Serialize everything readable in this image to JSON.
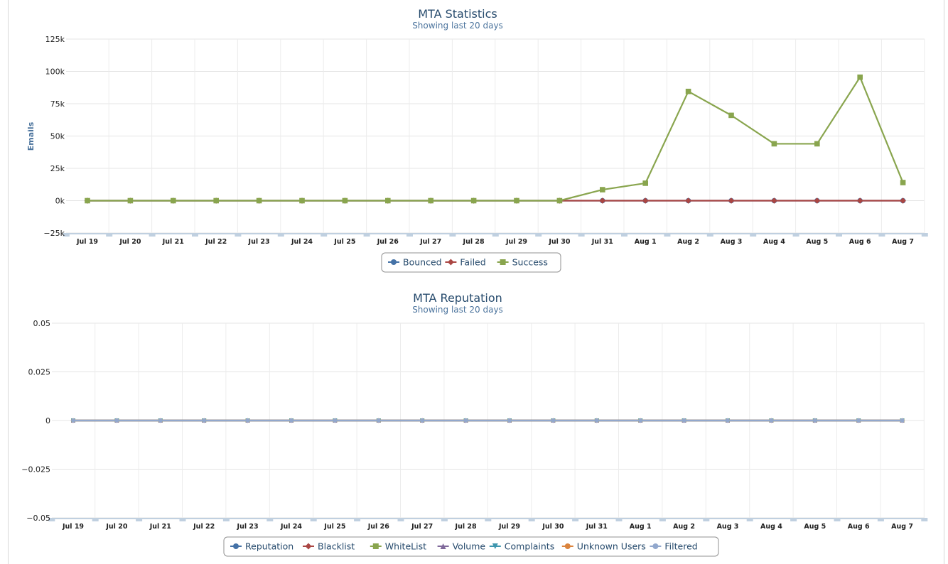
{
  "chart_data": [
    {
      "type": "line",
      "title": "MTA Statistics",
      "subtitle": "Showing last 20 days",
      "xlabel": "",
      "ylabel": "Emails",
      "ylim": [
        -25000,
        125000
      ],
      "yticks": [
        125000,
        100000,
        75000,
        50000,
        25000,
        0,
        -25000
      ],
      "ytick_labels": [
        "125k",
        "100k",
        "75k",
        "50k",
        "25k",
        "0k",
        "−25k"
      ],
      "categories": [
        "Jul 19",
        "Jul 20",
        "Jul 21",
        "Jul 22",
        "Jul 23",
        "Jul 24",
        "Jul 25",
        "Jul 26",
        "Jul 27",
        "Jul 28",
        "Jul 29",
        "Jul 30",
        "Jul 31",
        "Aug 1",
        "Aug 2",
        "Aug 3",
        "Aug 4",
        "Aug 5",
        "Aug 6",
        "Aug 7"
      ],
      "grid": true,
      "legend_placement": "bottom-center",
      "series": [
        {
          "name": "Bounced",
          "color": "#4572a7",
          "marker": "circle",
          "values": [
            0,
            0,
            0,
            0,
            0,
            0,
            0,
            0,
            0,
            0,
            0,
            0,
            0,
            0,
            0,
            0,
            0,
            0,
            0,
            0
          ]
        },
        {
          "name": "Failed",
          "color": "#aa4643",
          "marker": "diamond",
          "values": [
            0,
            0,
            0,
            0,
            0,
            0,
            0,
            0,
            0,
            0,
            0,
            0,
            0,
            0,
            0,
            0,
            0,
            0,
            0,
            0
          ]
        },
        {
          "name": "Success",
          "color": "#89a54e",
          "marker": "square",
          "values": [
            0,
            0,
            0,
            0,
            0,
            0,
            0,
            0,
            0,
            0,
            0,
            0,
            8500,
            13500,
            84500,
            66000,
            44000,
            44000,
            95500,
            14000
          ]
        }
      ]
    },
    {
      "type": "line",
      "title": "MTA Reputation",
      "subtitle": "Showing last 20 days",
      "xlabel": "",
      "ylabel": "",
      "ylim": [
        -0.05,
        0.05
      ],
      "yticks": [
        0.05,
        0.025,
        0,
        -0.025,
        -0.05
      ],
      "ytick_labels": [
        "0.05",
        "0.025",
        "0",
        "−0.025",
        "−0.05"
      ],
      "categories": [
        "Jul 19",
        "Jul 20",
        "Jul 21",
        "Jul 22",
        "Jul 23",
        "Jul 24",
        "Jul 25",
        "Jul 26",
        "Jul 27",
        "Jul 28",
        "Jul 29",
        "Jul 30",
        "Jul 31",
        "Aug 1",
        "Aug 2",
        "Aug 3",
        "Aug 4",
        "Aug 5",
        "Aug 6",
        "Aug 7"
      ],
      "grid": true,
      "legend_placement": "bottom-center",
      "series": [
        {
          "name": "Reputation",
          "color": "#4572a7",
          "marker": "circle",
          "values": [
            0,
            0,
            0,
            0,
            0,
            0,
            0,
            0,
            0,
            0,
            0,
            0,
            0,
            0,
            0,
            0,
            0,
            0,
            0,
            0
          ]
        },
        {
          "name": "Blacklist",
          "color": "#aa4643",
          "marker": "diamond",
          "values": [
            0,
            0,
            0,
            0,
            0,
            0,
            0,
            0,
            0,
            0,
            0,
            0,
            0,
            0,
            0,
            0,
            0,
            0,
            0,
            0
          ]
        },
        {
          "name": "WhiteList",
          "color": "#89a54e",
          "marker": "square",
          "values": [
            0,
            0,
            0,
            0,
            0,
            0,
            0,
            0,
            0,
            0,
            0,
            0,
            0,
            0,
            0,
            0,
            0,
            0,
            0,
            0
          ]
        },
        {
          "name": "Volume",
          "color": "#80699b",
          "marker": "triangle",
          "values": [
            0,
            0,
            0,
            0,
            0,
            0,
            0,
            0,
            0,
            0,
            0,
            0,
            0,
            0,
            0,
            0,
            0,
            0,
            0,
            0
          ]
        },
        {
          "name": "Complaints",
          "color": "#3d96ae",
          "marker": "triangle-down",
          "values": [
            0,
            0,
            0,
            0,
            0,
            0,
            0,
            0,
            0,
            0,
            0,
            0,
            0,
            0,
            0,
            0,
            0,
            0,
            0,
            0
          ]
        },
        {
          "name": "Unknown Users",
          "color": "#db843d",
          "marker": "circle",
          "values": [
            0,
            0,
            0,
            0,
            0,
            0,
            0,
            0,
            0,
            0,
            0,
            0,
            0,
            0,
            0,
            0,
            0,
            0,
            0,
            0
          ]
        },
        {
          "name": "Filtered",
          "color": "#92a8cd",
          "marker": "circle",
          "values": [
            0,
            0,
            0,
            0,
            0,
            0,
            0,
            0,
            0,
            0,
            0,
            0,
            0,
            0,
            0,
            0,
            0,
            0,
            0,
            0
          ]
        }
      ]
    }
  ]
}
